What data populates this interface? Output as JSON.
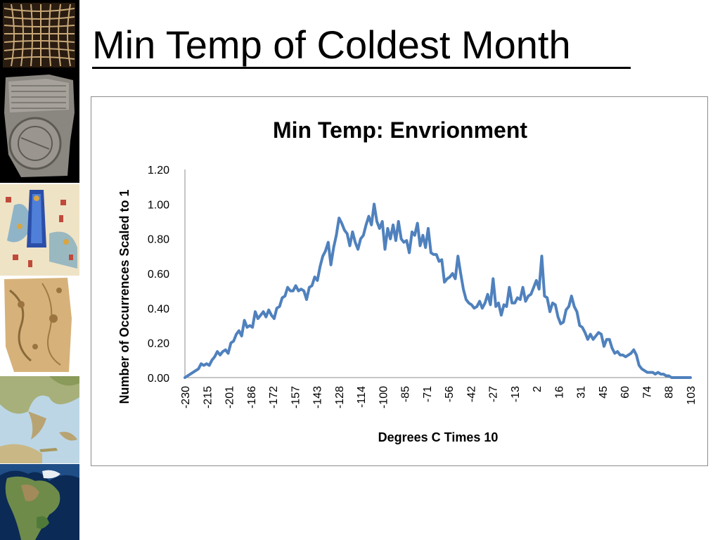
{
  "slide": {
    "title": "Min Temp of Coldest Month"
  },
  "sidebar": {
    "thumbnails": [
      {
        "name": "ancient-grid-map-icon"
      },
      {
        "name": "babylonian-clay-tablet-map-icon"
      },
      {
        "name": "medieval-illustrated-map-icon"
      },
      {
        "name": "parchment-map-icon"
      },
      {
        "name": "mediterranean-relief-map-icon"
      },
      {
        "name": "north-america-satellite-map-icon"
      }
    ]
  },
  "colors": {
    "line": "#4f81bd",
    "axis": "#8c8c8c",
    "frame": "#8c8c8c"
  },
  "chart_data": {
    "type": "line",
    "title": "Min Temp: Envrionment",
    "xlabel": "Degrees C Times 10",
    "ylabel": "Number of Occurrences Scaled to 1",
    "ylim": [
      0,
      1.2
    ],
    "y_ticks": [
      "0.00",
      "0.20",
      "0.40",
      "0.60",
      "0.80",
      "1.00",
      "1.20"
    ],
    "x_tick_labels": [
      "-230",
      "-215",
      "-201",
      "-186",
      "-172",
      "-157",
      "-143",
      "-128",
      "-114",
      "-100",
      "-85",
      "-71",
      "-56",
      "-42",
      "-27",
      "-13",
      "2",
      "16",
      "31",
      "45",
      "60",
      "74",
      "88",
      "103"
    ],
    "grid": false,
    "legend": "none",
    "series": [
      {
        "values": [
          0.0,
          0.01,
          0.02,
          0.03,
          0.04,
          0.05,
          0.08,
          0.07,
          0.08,
          0.07,
          0.1,
          0.12,
          0.15,
          0.13,
          0.15,
          0.16,
          0.14,
          0.2,
          0.21,
          0.25,
          0.27,
          0.24,
          0.33,
          0.29,
          0.3,
          0.29,
          0.38,
          0.34,
          0.36,
          0.38,
          0.35,
          0.39,
          0.36,
          0.34,
          0.4,
          0.41,
          0.46,
          0.47,
          0.52,
          0.5,
          0.5,
          0.53,
          0.5,
          0.51,
          0.5,
          0.45,
          0.52,
          0.53,
          0.58,
          0.56,
          0.64,
          0.7,
          0.73,
          0.78,
          0.65,
          0.75,
          0.82,
          0.92,
          0.89,
          0.85,
          0.83,
          0.76,
          0.84,
          0.78,
          0.74,
          0.8,
          0.82,
          0.88,
          0.93,
          0.88,
          1.0,
          0.9,
          0.86,
          0.9,
          0.74,
          0.86,
          0.8,
          0.88,
          0.79,
          0.9,
          0.8,
          0.78,
          0.79,
          0.72,
          0.84,
          0.82,
          0.89,
          0.76,
          0.82,
          0.75,
          0.86,
          0.72,
          0.71,
          0.71,
          0.67,
          0.68,
          0.55,
          0.57,
          0.58,
          0.6,
          0.57,
          0.7,
          0.6,
          0.51,
          0.45,
          0.43,
          0.42,
          0.4,
          0.41,
          0.44,
          0.4,
          0.43,
          0.48,
          0.42,
          0.57,
          0.41,
          0.43,
          0.36,
          0.42,
          0.41,
          0.52,
          0.43,
          0.43,
          0.46,
          0.45,
          0.52,
          0.44,
          0.47,
          0.48,
          0.52,
          0.56,
          0.51,
          0.7,
          0.47,
          0.46,
          0.38,
          0.43,
          0.42,
          0.35,
          0.31,
          0.32,
          0.39,
          0.41,
          0.47,
          0.41,
          0.38,
          0.3,
          0.29,
          0.26,
          0.22,
          0.25,
          0.22,
          0.24,
          0.26,
          0.25,
          0.18,
          0.22,
          0.22,
          0.17,
          0.14,
          0.15,
          0.13,
          0.13,
          0.12,
          0.13,
          0.14,
          0.16,
          0.13,
          0.07,
          0.05,
          0.04,
          0.03,
          0.03,
          0.03,
          0.02,
          0.03,
          0.02,
          0.02,
          0.01,
          0.01,
          0.0,
          0.0,
          0.0,
          0.0,
          0.0,
          0.0,
          0.0,
          0.0
        ]
      }
    ]
  }
}
